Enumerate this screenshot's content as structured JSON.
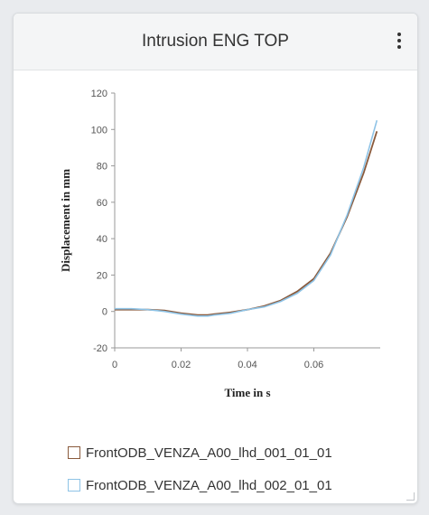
{
  "widget": {
    "title": "Intrusion ENG TOP",
    "menu_icon": "more-vertical-icon"
  },
  "chart_data": {
    "type": "line",
    "title": "",
    "xlabel": "Time in s",
    "ylabel": "Displacement in mm",
    "xlim": [
      0,
      0.08
    ],
    "ylim": [
      -20,
      120
    ],
    "x_ticks": [
      "0",
      "0.02",
      "0.04",
      "0.06"
    ],
    "y_ticks": [
      "-20",
      "0",
      "20",
      "40",
      "60",
      "80",
      "100",
      "120"
    ],
    "grid": false,
    "legend_position": "bottom",
    "series": [
      {
        "name": "FrontODB_VENZA_A00_lhd_001_01_01",
        "color": "#8a5a3c",
        "x": [
          0,
          0.005,
          0.01,
          0.015,
          0.02,
          0.025,
          0.028,
          0.03,
          0.035,
          0.04,
          0.045,
          0.05,
          0.055,
          0.06,
          0.065,
          0.07,
          0.075,
          0.079
        ],
        "y": [
          1,
          1,
          1,
          0.5,
          -1,
          -2,
          -2,
          -1.5,
          -0.5,
          1,
          3,
          6,
          11,
          18,
          32,
          52,
          76,
          99
        ]
      },
      {
        "name": "FrontODB_VENZA_A00_lhd_002_01_01",
        "color": "#8ec3e6",
        "x": [
          0,
          0.005,
          0.01,
          0.015,
          0.02,
          0.025,
          0.028,
          0.03,
          0.035,
          0.04,
          0.045,
          0.05,
          0.055,
          0.06,
          0.065,
          0.07,
          0.075,
          0.079
        ],
        "y": [
          1.5,
          1.5,
          1,
          0,
          -1.5,
          -2.5,
          -2.5,
          -2,
          -1,
          1,
          2.5,
          5.5,
          10,
          17,
          31,
          53,
          79,
          105
        ]
      }
    ]
  }
}
